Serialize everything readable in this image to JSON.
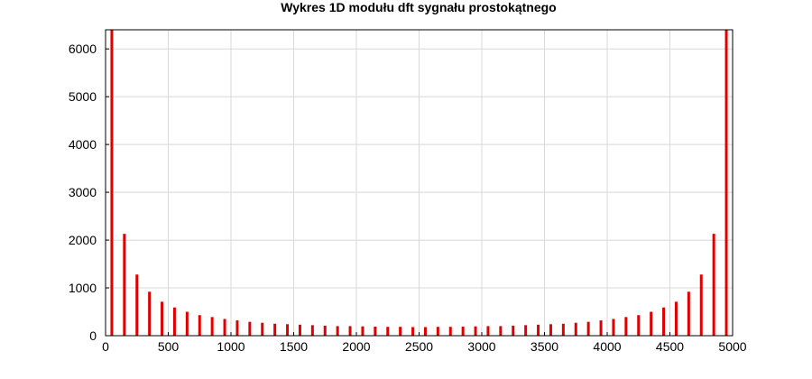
{
  "chart_data": {
    "type": "bar",
    "title": "Wykres 1D modułu dft sygnału prostokątnego",
    "xlabel": "",
    "ylabel": "",
    "xlim": [
      0,
      5000
    ],
    "ylim": [
      0,
      6400
    ],
    "grid": true,
    "x_ticks": [
      0,
      500,
      1000,
      1500,
      2000,
      2500,
      3000,
      3500,
      4000,
      4500,
      5000
    ],
    "y_ticks": [
      0,
      1000,
      2000,
      3000,
      4000,
      5000,
      6000
    ],
    "series": [
      {
        "color": "#e00000",
        "x": [
          50,
          150,
          250,
          350,
          450,
          550,
          650,
          750,
          850,
          950,
          1050,
          1150,
          1250,
          1350,
          1450,
          1550,
          1650,
          1750,
          1850,
          1950,
          2050,
          2150,
          2250,
          2350,
          2450,
          2550,
          2650,
          2750,
          2850,
          2950,
          3050,
          3150,
          3250,
          3350,
          3450,
          3550,
          3650,
          3750,
          3850,
          3950,
          4050,
          4150,
          4250,
          4350,
          4450,
          4550,
          4650,
          4750,
          4850,
          4950
        ],
        "values": [
          6400,
          2130,
          1280,
          920,
          710,
          590,
          500,
          430,
          390,
          350,
          320,
          290,
          270,
          250,
          240,
          230,
          220,
          210,
          200,
          200,
          195,
          190,
          185,
          185,
          180,
          180,
          185,
          185,
          190,
          195,
          200,
          200,
          210,
          220,
          230,
          240,
          250,
          270,
          290,
          320,
          350,
          390,
          430,
          500,
          590,
          710,
          920,
          1280,
          2130,
          6400
        ]
      }
    ]
  }
}
